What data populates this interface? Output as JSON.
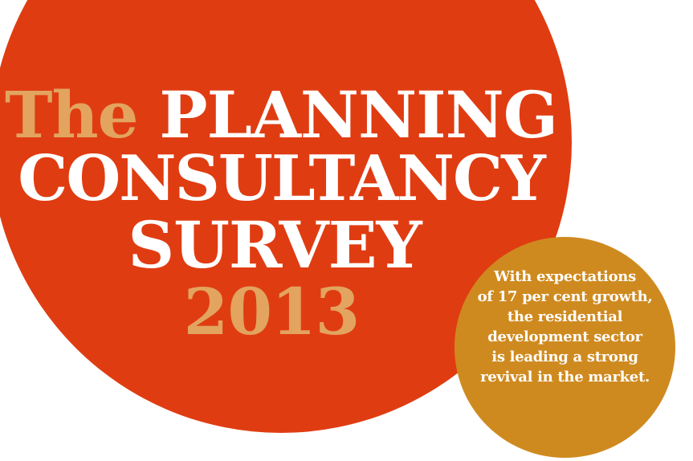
{
  "colors": {
    "main_circle": "#e03c12",
    "accent_gold": "#e2a45f",
    "small_circle": "#cf8a1f",
    "text_white": "#ffffff"
  },
  "headline": {
    "word_the": "The",
    "word_planning": "PLANNING",
    "line2": "CONSULTANCY",
    "line3": "SURVEY",
    "year": "2013"
  },
  "blurb": {
    "lines": [
      "With expectations",
      "of 17 per cent growth,",
      "the residential",
      "development sector",
      "is leading a strong",
      "revival in the market."
    ]
  }
}
